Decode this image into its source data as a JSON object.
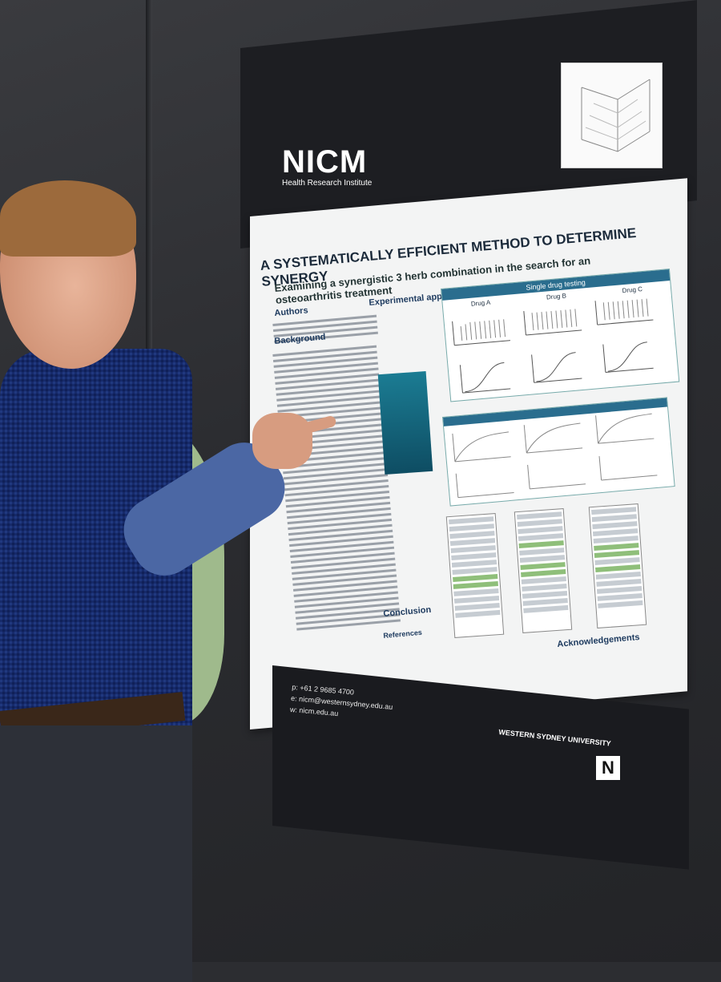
{
  "poster": {
    "logo": "NICM",
    "logo_sub": "Health Research Institute",
    "title": "A SYSTEMATICALLY EFFICIENT METHOD TO DETERMINE SYNERGY",
    "subtitle": "Examining a synergistic 3 herb combination in the search for an osteoarthritis treatment",
    "sections": {
      "authors": "Authors",
      "background": "Background",
      "approach": "Experimental approach and results for NO assay",
      "single": "Single drug testing",
      "conclusion": "Conclusion",
      "references": "References",
      "acknowledgements": "Acknowledgements"
    },
    "drugs": [
      "Drug A",
      "Drug B",
      "Drug C"
    ],
    "contact": [
      "p: +61 2 9685 4700",
      "e: nicm@westernsydney.edu.au",
      "w: nicm.edu.au"
    ],
    "university": "WESTERN SYDNEY UNIVERSITY",
    "badge": "N"
  }
}
